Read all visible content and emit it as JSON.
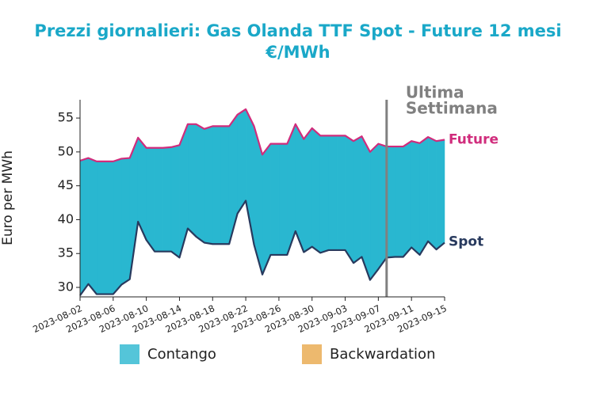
{
  "chart_data": {
    "type": "line",
    "title": "Prezzi giornalieri: Gas Olanda TTF Spot - Future 12 mesi",
    "subtitle": "€/MWh",
    "y_label": "Euro per MWh",
    "x": [
      "2023-08-02",
      "2023-08-03",
      "2023-08-04",
      "2023-08-05",
      "2023-08-06",
      "2023-08-07",
      "2023-08-08",
      "2023-08-09",
      "2023-08-10",
      "2023-08-11",
      "2023-08-12",
      "2023-08-13",
      "2023-08-14",
      "2023-08-15",
      "2023-08-16",
      "2023-08-17",
      "2023-08-18",
      "2023-08-19",
      "2023-08-20",
      "2023-08-21",
      "2023-08-22",
      "2023-08-23",
      "2023-08-24",
      "2023-08-25",
      "2023-08-26",
      "2023-08-27",
      "2023-08-28",
      "2023-08-29",
      "2023-08-30",
      "2023-08-31",
      "2023-09-01",
      "2023-09-02",
      "2023-09-03",
      "2023-09-04",
      "2023-09-05",
      "2023-09-06",
      "2023-09-07",
      "2023-09-08",
      "2023-09-09",
      "2023-09-10",
      "2023-09-11",
      "2023-09-12",
      "2023-09-13",
      "2023-09-14",
      "2023-09-15"
    ],
    "series": [
      {
        "name": "Future",
        "color": "#d02c7c",
        "values": [
          48.7,
          49.1,
          48.6,
          48.6,
          48.6,
          49.0,
          49.1,
          52.1,
          50.6,
          50.6,
          50.6,
          50.7,
          51.0,
          54.1,
          54.1,
          53.4,
          53.8,
          53.8,
          53.8,
          55.5,
          56.3,
          53.8,
          49.6,
          51.2,
          51.2,
          51.2,
          54.1,
          51.9,
          53.5,
          52.4,
          52.4,
          52.4,
          52.4,
          51.6,
          52.3,
          50.0,
          51.2,
          50.8,
          50.8,
          50.8,
          51.6,
          51.3,
          52.2,
          51.6,
          51.8
        ]
      },
      {
        "name": "Spot",
        "color": "#283a5e",
        "values": [
          28.8,
          30.5,
          29.0,
          29.0,
          29.0,
          30.4,
          31.2,
          39.7,
          37.0,
          35.3,
          35.3,
          35.3,
          34.4,
          38.7,
          37.5,
          36.6,
          36.4,
          36.4,
          36.4,
          40.9,
          42.8,
          36.3,
          31.9,
          34.8,
          34.8,
          34.8,
          38.3,
          35.2,
          36.0,
          35.1,
          35.5,
          35.5,
          35.5,
          33.6,
          34.5,
          31.1,
          32.7,
          34.4,
          34.5,
          34.5,
          35.9,
          34.8,
          36.8,
          35.6,
          36.6
        ]
      }
    ],
    "spread_fills": [
      {
        "name": "Contango",
        "color": "#29b7d0"
      },
      {
        "name": "Backwardation",
        "color": "#e9a84a"
      }
    ],
    "xticks": [
      "2023-08-02",
      "2023-08-06",
      "2023-08-10",
      "2023-08-14",
      "2023-08-18",
      "2023-08-22",
      "2023-08-26",
      "2023-08-30",
      "2023-09-03",
      "2023-09-07",
      "2023-09-11",
      "2023-09-15"
    ],
    "ylim": [
      28.6,
      57.7
    ],
    "yticks": [
      30,
      35,
      40,
      45,
      50,
      55
    ],
    "marker_line": {
      "x": "2023-09-08",
      "color": "#808080",
      "label_lines": [
        "Ultima",
        "Settimana"
      ]
    }
  }
}
